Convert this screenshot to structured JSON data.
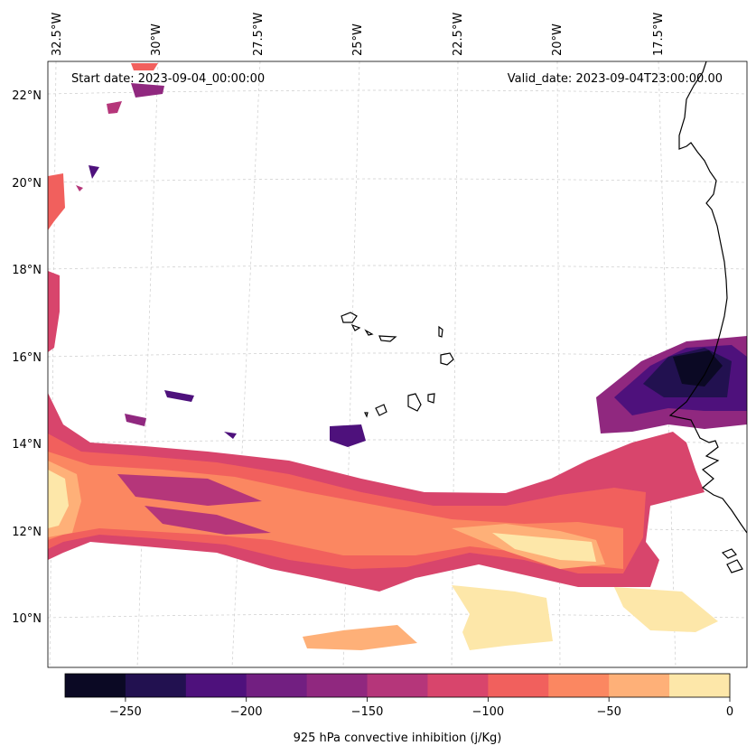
{
  "map": {
    "start_date": "Start date: 2023-09-04_00:00:00",
    "valid_date": "Valid_date: 2023-09-04T23:00:00.00",
    "lon_labels": [
      "32.5°W",
      "30°W",
      "27.5°W",
      "25°W",
      "22.5°W",
      "20°W",
      "17.5°W"
    ],
    "lat_labels": [
      "22°N",
      "20°N",
      "18°N",
      "16°N",
      "14°N",
      "12°N",
      "10°N"
    ]
  },
  "colorbar": {
    "label": "925 hPa convective inhibition (j/Kg)",
    "tick_labels": [
      "−250",
      "−200",
      "−150",
      "−100",
      "−50",
      "0"
    ],
    "levels": [
      -275,
      -250,
      -225,
      -200,
      -175,
      -150,
      -125,
      -100,
      -75,
      -50,
      -25,
      0
    ],
    "colors": [
      "#0b0924",
      "#221150",
      "#4e117c",
      "#721f81",
      "#90287f",
      "#b5367a",
      "#d8456c",
      "#f1605d",
      "#fb8761",
      "#feb078",
      "#fde7a9"
    ]
  }
}
